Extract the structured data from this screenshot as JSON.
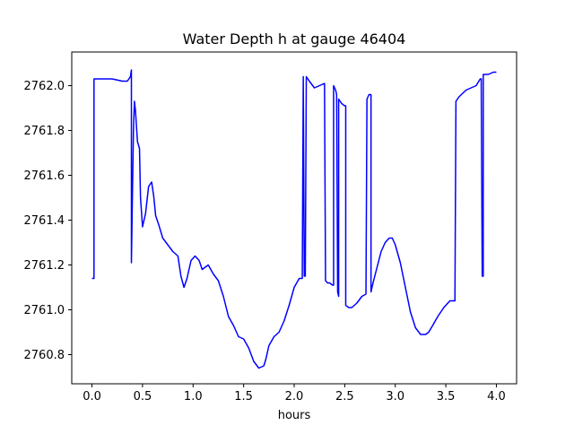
{
  "chart_data": {
    "type": "line",
    "title": "Water Depth h at gauge 46404",
    "xlabel": "hours",
    "ylabel": "",
    "xlim": [
      -0.2,
      4.2
    ],
    "ylim": [
      2760.67,
      2762.15
    ],
    "x_ticks": [
      0.0,
      0.5,
      1.0,
      1.5,
      2.0,
      2.5,
      3.0,
      3.5,
      4.0
    ],
    "x_tick_labels": [
      "0.0",
      "0.5",
      "1.0",
      "1.5",
      "2.0",
      "2.5",
      "3.0",
      "3.5",
      "4.0"
    ],
    "y_ticks": [
      2760.8,
      2761.0,
      2761.2,
      2761.4,
      2761.6,
      2761.8,
      2762.0
    ],
    "y_tick_labels": [
      "2760.8",
      "2761.0",
      "2761.2",
      "2761.4",
      "2761.6",
      "2761.8",
      "2762.0"
    ],
    "grid": false,
    "line_color": "#0000ff",
    "series": [
      {
        "x": [
          0.0,
          0.02,
          0.02,
          0.1,
          0.2,
          0.3,
          0.35,
          0.38,
          0.39,
          0.39,
          0.41,
          0.42,
          0.43,
          0.45,
          0.47,
          0.48,
          0.5,
          0.53,
          0.56,
          0.59,
          0.61,
          0.63,
          0.66,
          0.7,
          0.75,
          0.8,
          0.85,
          0.88,
          0.91,
          0.94,
          0.98,
          1.02,
          1.06,
          1.09,
          1.12,
          1.15,
          1.2,
          1.25,
          1.3,
          1.35,
          1.4,
          1.45,
          1.5,
          1.55,
          1.6,
          1.65,
          1.7,
          1.72,
          1.75,
          1.8,
          1.85,
          1.9,
          1.95,
          2.0,
          2.05,
          2.08,
          2.09,
          2.1,
          2.11,
          2.12,
          2.12,
          2.15,
          2.2,
          2.25,
          2.3,
          2.31,
          2.33,
          2.35,
          2.38,
          2.39,
          2.39,
          2.41,
          2.42,
          2.43,
          2.44,
          2.44,
          2.47,
          2.5,
          2.51,
          2.51,
          2.54,
          2.57,
          2.62,
          2.67,
          2.71,
          2.72,
          2.72,
          2.74,
          2.76,
          2.76,
          2.78,
          2.82,
          2.86,
          2.9,
          2.94,
          2.97,
          3.0,
          3.05,
          3.1,
          3.15,
          3.2,
          3.25,
          3.3,
          3.33,
          3.37,
          3.42,
          3.48,
          3.54,
          3.59,
          3.6,
          3.63,
          3.7,
          3.8,
          3.84,
          3.85,
          3.86,
          3.87,
          3.87,
          3.92,
          3.97,
          4.0
        ],
        "y": [
          2761.14,
          2761.14,
          2762.03,
          2762.03,
          2762.03,
          2762.02,
          2762.02,
          2762.04,
          2762.07,
          2761.21,
          2761.8,
          2761.93,
          2761.89,
          2761.75,
          2761.72,
          2761.5,
          2761.37,
          2761.43,
          2761.55,
          2761.57,
          2761.51,
          2761.42,
          2761.38,
          2761.32,
          2761.29,
          2761.26,
          2761.24,
          2761.15,
          2761.1,
          2761.14,
          2761.22,
          2761.24,
          2761.22,
          2761.18,
          2761.19,
          2761.2,
          2761.16,
          2761.13,
          2761.06,
          2760.97,
          2760.93,
          2760.88,
          2760.87,
          2760.83,
          2760.77,
          2760.74,
          2760.75,
          2760.78,
          2760.84,
          2760.88,
          2760.9,
          2760.95,
          2761.02,
          2761.1,
          2761.14,
          2761.14,
          2762.04,
          2761.15,
          2761.15,
          2762.04,
          2762.04,
          2762.02,
          2761.99,
          2762.0,
          2762.01,
          2761.13,
          2761.12,
          2761.12,
          2761.11,
          2761.11,
          2762.0,
          2761.98,
          2761.96,
          2761.08,
          2761.06,
          2761.94,
          2761.92,
          2761.91,
          2761.91,
          2761.02,
          2761.01,
          2761.01,
          2761.03,
          2761.06,
          2761.07,
          2761.94,
          2761.94,
          2761.96,
          2761.96,
          2761.08,
          2761.12,
          2761.19,
          2761.26,
          2761.3,
          2761.32,
          2761.32,
          2761.29,
          2761.21,
          2761.1,
          2760.99,
          2760.92,
          2760.89,
          2760.89,
          2760.9,
          2760.93,
          2760.97,
          2761.01,
          2761.04,
          2761.04,
          2761.93,
          2761.95,
          2761.98,
          2762.0,
          2762.03,
          2762.03,
          2761.15,
          2761.15,
          2762.05,
          2762.05,
          2762.06,
          2762.06
        ]
      }
    ]
  }
}
